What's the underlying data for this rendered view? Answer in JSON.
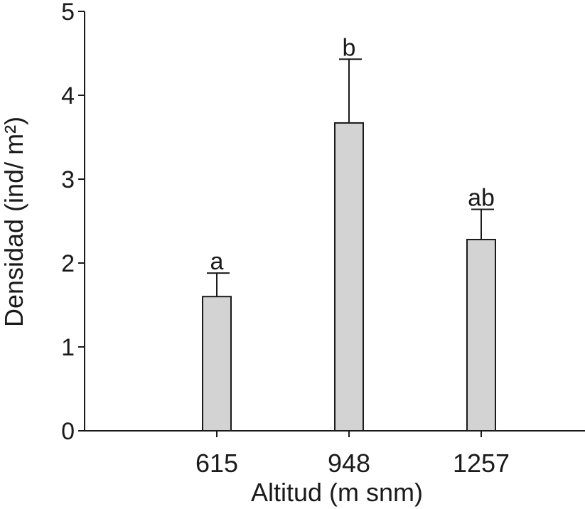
{
  "chart_data": {
    "type": "bar",
    "title": "",
    "xlabel": "Altitud (m snm)",
    "ylabel": "Densidad (ind/ m²)",
    "categories": [
      "615",
      "948",
      "1257"
    ],
    "values": [
      1.6,
      3.67,
      2.28
    ],
    "error_upper": [
      1.88,
      4.43,
      2.64
    ],
    "significance_labels": [
      "a",
      "b",
      "ab"
    ],
    "ylim": [
      0,
      5
    ],
    "yticks": [
      0,
      1,
      2,
      3,
      4,
      5
    ],
    "ytick_labels": [
      "0",
      "1",
      "2",
      "3",
      "4",
      "5"
    ],
    "grid": false,
    "legend": "none",
    "colors": {
      "bar_fill": "#d3d3d3",
      "stroke": "#1a1a1a"
    }
  }
}
